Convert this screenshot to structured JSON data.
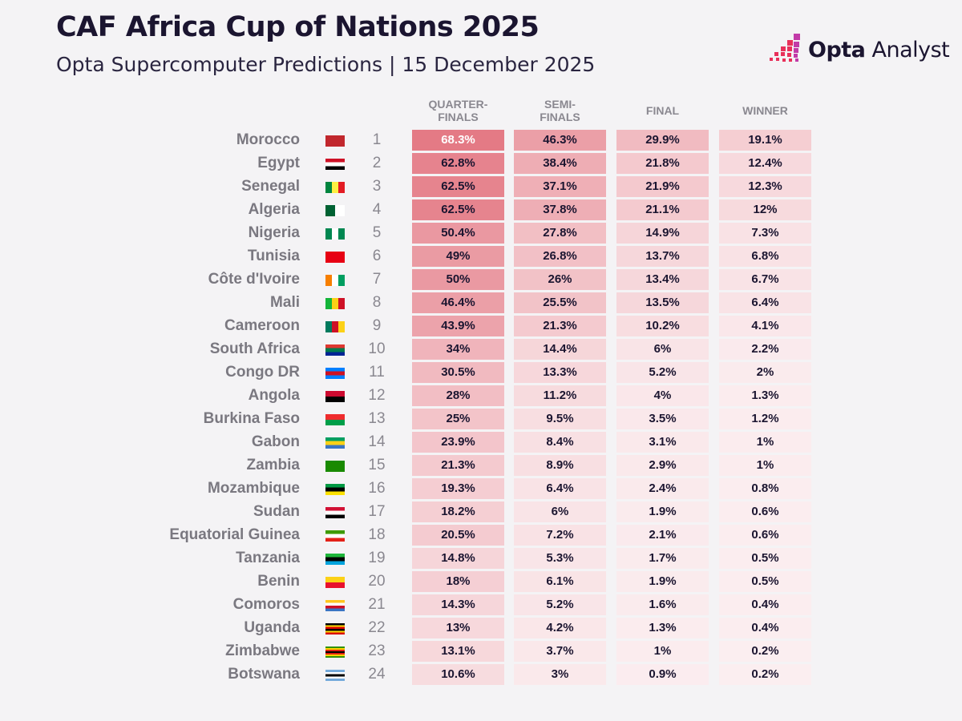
{
  "header": {
    "title": "CAF Africa Cup of Nations 2025",
    "subtitle": "Opta Supercomputer Predictions | 15 December 2025"
  },
  "logo": {
    "bold": "Opta",
    "light": "Analyst",
    "colors": [
      "#e8305a",
      "#c23aa8"
    ]
  },
  "colors": {
    "cell_low": "#fbeef0",
    "cell_high": "#e47a85",
    "text": "#1b1530",
    "text_on_dark": "#ffffff"
  },
  "chart_data": {
    "type": "table",
    "columns": [
      "QUARTER-\nFINALS",
      "SEMI-\nFINALS",
      "FINAL",
      "WINNER"
    ],
    "column_labels": [
      [
        "QUARTER-",
        "FINALS"
      ],
      [
        "SEMI-",
        "FINALS"
      ],
      [
        "FINAL",
        ""
      ],
      [
        "WINNER",
        ""
      ]
    ],
    "rows": [
      {
        "team": "Morocco",
        "rank": "1",
        "values": [
          "68.3%",
          "46.3%",
          "29.9%",
          "19.1%"
        ],
        "flag": {
          "dir": "h",
          "colors": [
            "#c1272d"
          ]
        }
      },
      {
        "team": "Egypt",
        "rank": "2",
        "values": [
          "62.8%",
          "38.4%",
          "21.8%",
          "12.4%"
        ],
        "flag": {
          "dir": "h",
          "colors": [
            "#ce1126",
            "#ffffff",
            "#000000"
          ]
        }
      },
      {
        "team": "Senegal",
        "rank": "3",
        "values": [
          "62.5%",
          "37.1%",
          "21.9%",
          "12.3%"
        ],
        "flag": {
          "dir": "v",
          "colors": [
            "#00853f",
            "#fdef42",
            "#e31b23"
          ]
        }
      },
      {
        "team": "Algeria",
        "rank": "4",
        "values": [
          "62.5%",
          "37.8%",
          "21.1%",
          "12%"
        ],
        "flag": {
          "dir": "v",
          "colors": [
            "#006233",
            "#ffffff"
          ]
        }
      },
      {
        "team": "Nigeria",
        "rank": "5",
        "values": [
          "50.4%",
          "27.8%",
          "14.9%",
          "7.3%"
        ],
        "flag": {
          "dir": "v",
          "colors": [
            "#008751",
            "#ffffff",
            "#008751"
          ]
        }
      },
      {
        "team": "Tunisia",
        "rank": "6",
        "values": [
          "49%",
          "26.8%",
          "13.7%",
          "6.8%"
        ],
        "flag": {
          "dir": "h",
          "colors": [
            "#e70013"
          ]
        }
      },
      {
        "team": "Côte d'Ivoire",
        "rank": "7",
        "values": [
          "50%",
          "26%",
          "13.4%",
          "6.7%"
        ],
        "flag": {
          "dir": "v",
          "colors": [
            "#f77f00",
            "#ffffff",
            "#009e60"
          ]
        }
      },
      {
        "team": "Mali",
        "rank": "8",
        "values": [
          "46.4%",
          "25.5%",
          "13.5%",
          "6.4%"
        ],
        "flag": {
          "dir": "v",
          "colors": [
            "#14b53a",
            "#fcd116",
            "#ce1126"
          ]
        }
      },
      {
        "team": "Cameroon",
        "rank": "9",
        "values": [
          "43.9%",
          "21.3%",
          "10.2%",
          "4.1%"
        ],
        "flag": {
          "dir": "v",
          "colors": [
            "#007a5e",
            "#ce1126",
            "#fcd116"
          ]
        }
      },
      {
        "team": "South Africa",
        "rank": "10",
        "values": [
          "34%",
          "14.4%",
          "6%",
          "2.2%"
        ],
        "flag": {
          "dir": "h",
          "colors": [
            "#de3831",
            "#007a4d",
            "#002395"
          ]
        }
      },
      {
        "team": "Congo DR",
        "rank": "11",
        "values": [
          "30.5%",
          "13.3%",
          "5.2%",
          "2%"
        ],
        "flag": {
          "dir": "h",
          "colors": [
            "#007fff",
            "#ce1021",
            "#007fff"
          ]
        }
      },
      {
        "team": "Angola",
        "rank": "12",
        "values": [
          "28%",
          "11.2%",
          "4%",
          "1.3%"
        ],
        "flag": {
          "dir": "h",
          "colors": [
            "#cc092f",
            "#000000"
          ]
        }
      },
      {
        "team": "Burkina Faso",
        "rank": "13",
        "values": [
          "25%",
          "9.5%",
          "3.5%",
          "1.2%"
        ],
        "flag": {
          "dir": "h",
          "colors": [
            "#ef2b2d",
            "#009e49"
          ]
        }
      },
      {
        "team": "Gabon",
        "rank": "14",
        "values": [
          "23.9%",
          "8.4%",
          "3.1%",
          "1%"
        ],
        "flag": {
          "dir": "h",
          "colors": [
            "#009e60",
            "#fcd116",
            "#3a75c4"
          ]
        }
      },
      {
        "team": "Zambia",
        "rank": "15",
        "values": [
          "21.3%",
          "8.9%",
          "2.9%",
          "1%"
        ],
        "flag": {
          "dir": "h",
          "colors": [
            "#198a00"
          ]
        }
      },
      {
        "team": "Mozambique",
        "rank": "16",
        "values": [
          "19.3%",
          "6.4%",
          "2.4%",
          "0.8%"
        ],
        "flag": {
          "dir": "h",
          "colors": [
            "#009a44",
            "#000000",
            "#fce100"
          ]
        }
      },
      {
        "team": "Sudan",
        "rank": "17",
        "values": [
          "18.2%",
          "6%",
          "1.9%",
          "0.6%"
        ],
        "flag": {
          "dir": "h",
          "colors": [
            "#d21034",
            "#ffffff",
            "#000000"
          ]
        }
      },
      {
        "team": "Equatorial Guinea",
        "rank": "18",
        "values": [
          "20.5%",
          "7.2%",
          "2.1%",
          "0.6%"
        ],
        "flag": {
          "dir": "h",
          "colors": [
            "#3e9a00",
            "#ffffff",
            "#e32118"
          ]
        }
      },
      {
        "team": "Tanzania",
        "rank": "19",
        "values": [
          "14.8%",
          "5.3%",
          "1.7%",
          "0.5%"
        ],
        "flag": {
          "dir": "h",
          "colors": [
            "#1eb53a",
            "#000000",
            "#00a3dd"
          ]
        }
      },
      {
        "team": "Benin",
        "rank": "20",
        "values": [
          "18%",
          "6.1%",
          "1.9%",
          "0.5%"
        ],
        "flag": {
          "dir": "h",
          "colors": [
            "#fcd116",
            "#e8112d"
          ]
        }
      },
      {
        "team": "Comoros",
        "rank": "21",
        "values": [
          "14.3%",
          "5.2%",
          "1.6%",
          "0.4%"
        ],
        "flag": {
          "dir": "h",
          "colors": [
            "#ffc61e",
            "#ffffff",
            "#ce1126",
            "#3a75c4"
          ]
        }
      },
      {
        "team": "Uganda",
        "rank": "22",
        "values": [
          "13%",
          "4.2%",
          "1.3%",
          "0.4%"
        ],
        "flag": {
          "dir": "h",
          "colors": [
            "#000000",
            "#fcdc04",
            "#d90000",
            "#000000",
            "#fcdc04",
            "#d90000"
          ]
        }
      },
      {
        "team": "Zimbabwe",
        "rank": "23",
        "values": [
          "13.1%",
          "3.7%",
          "1%",
          "0.2%"
        ],
        "flag": {
          "dir": "h",
          "colors": [
            "#319208",
            "#ffd200",
            "#de2010",
            "#000000",
            "#de2010",
            "#ffd200",
            "#319208"
          ]
        }
      },
      {
        "team": "Botswana",
        "rank": "24",
        "values": [
          "10.6%",
          "3%",
          "0.9%",
          "0.2%"
        ],
        "flag": {
          "dir": "h",
          "colors": [
            "#75aadb",
            "#ffffff",
            "#000000",
            "#ffffff",
            "#75aadb"
          ]
        }
      }
    ]
  }
}
